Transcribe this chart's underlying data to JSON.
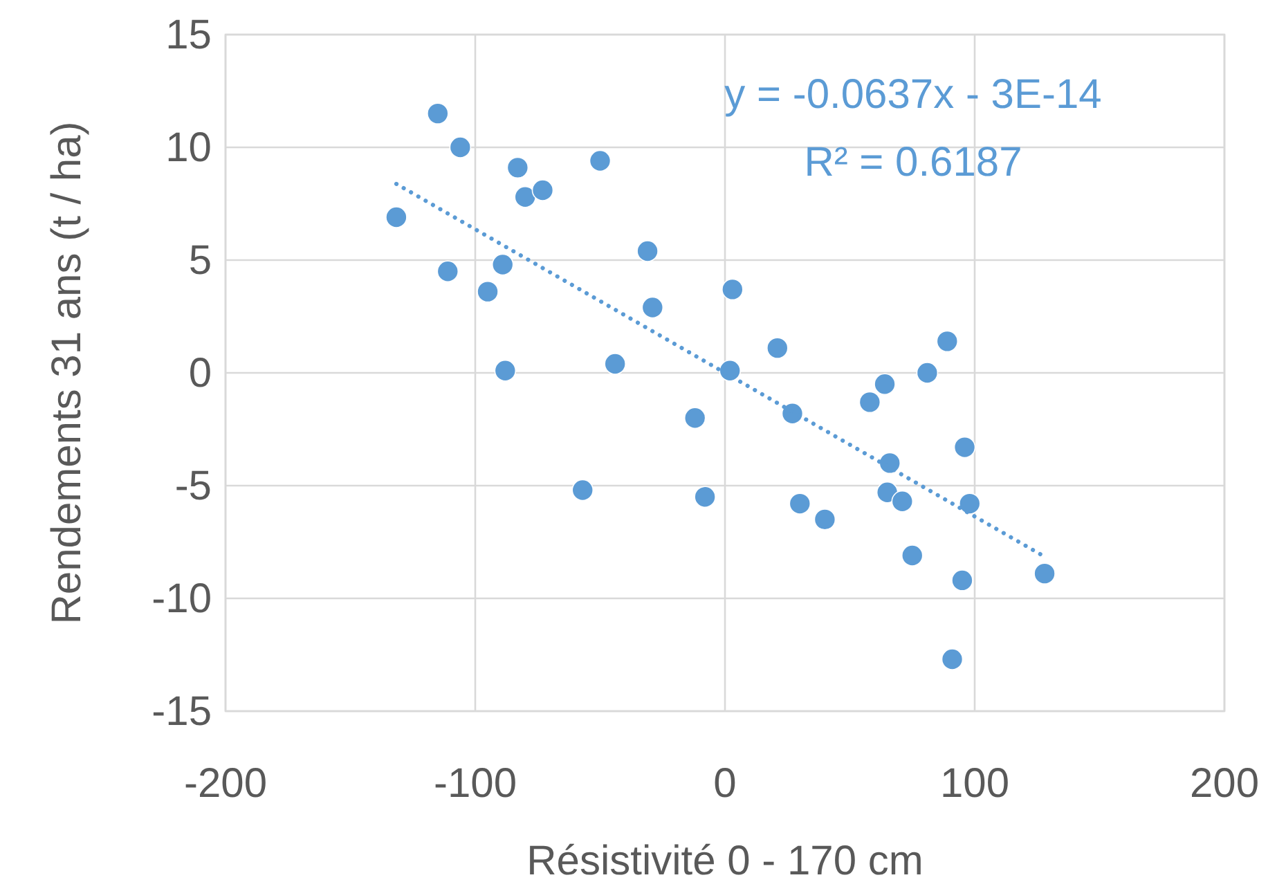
{
  "chart_data": {
    "type": "scatter",
    "xlabel": "Résistivité 0 - 170 cm",
    "ylabel": "Rendements  31 ans (t / ha)",
    "xlim": [
      -200,
      200
    ],
    "xticks": [
      -200,
      -100,
      0,
      100,
      200
    ],
    "ylim": [
      -15,
      15
    ],
    "yticks": [
      -15,
      -10,
      -5,
      0,
      5,
      10,
      15
    ],
    "grid": true,
    "series": [
      {
        "color": "#5b9bd5",
        "marker": "circle",
        "x": [
          -131.6,
          -115,
          -106,
          -111,
          -83,
          -80,
          -73,
          -89,
          -95,
          -88,
          -50,
          -57,
          -44,
          -31,
          -29,
          -12,
          -8,
          3,
          2,
          21,
          27,
          30,
          40,
          58,
          64,
          66,
          65,
          71,
          75,
          81,
          89,
          96,
          98,
          95,
          91,
          128
        ],
        "values": [
          6.9,
          11.5,
          10.0,
          4.5,
          9.1,
          7.8,
          8.1,
          4.8,
          3.6,
          0.1,
          9.4,
          -5.2,
          0.4,
          5.4,
          2.9,
          -2.0,
          -5.5,
          3.7,
          0.1,
          1.1,
          -1.8,
          -5.8,
          -6.5,
          -1.3,
          -0.5,
          -4.0,
          -5.3,
          -5.7,
          -8.1,
          0.0,
          1.4,
          -3.3,
          -5.8,
          -9.2,
          -12.7,
          -8.9
        ]
      },
      {
        "type": "line",
        "color": "#5b9bd5",
        "line_style": "dotted",
        "marker": "none",
        "x": [
          -131.6,
          128
        ],
        "values": [
          8.38,
          -8.15
        ]
      }
    ],
    "annotations": [
      "y = -0.0637x - 3E-14",
      "R² = 0.6187"
    ]
  }
}
